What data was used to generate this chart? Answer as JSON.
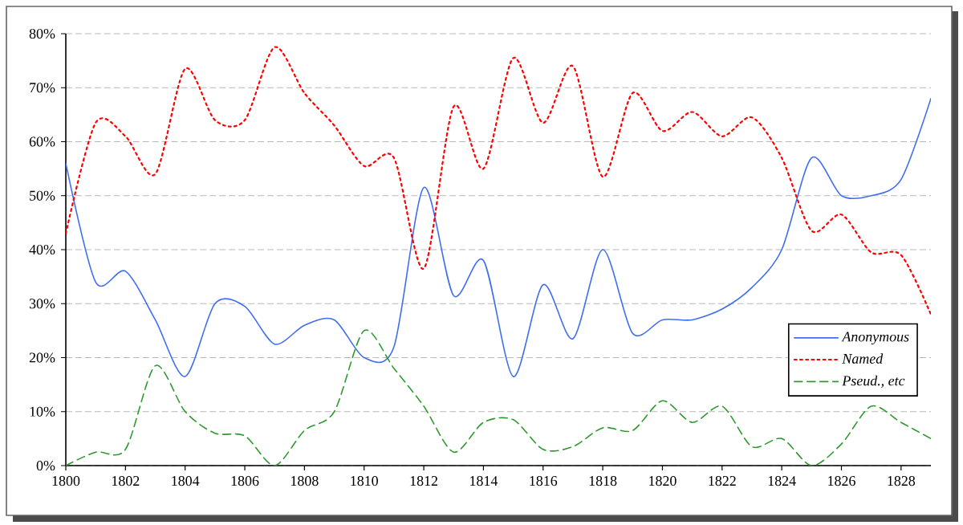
{
  "chart_data": {
    "type": "line",
    "x": [
      1800,
      1801,
      1802,
      1803,
      1804,
      1805,
      1806,
      1807,
      1808,
      1809,
      1810,
      1811,
      1812,
      1813,
      1814,
      1815,
      1816,
      1817,
      1818,
      1819,
      1820,
      1821,
      1822,
      1823,
      1824,
      1825,
      1826,
      1827,
      1828,
      1829
    ],
    "series": [
      {
        "name": "Anonymous",
        "color": "#3f6fef",
        "line_style": "solid",
        "values": [
          56,
          34,
          36,
          27,
          16.5,
          30,
          29.5,
          22.5,
          26,
          27,
          20,
          22,
          51.5,
          31.5,
          38,
          16.5,
          33.5,
          23.5,
          40,
          24.5,
          27,
          27,
          29,
          33,
          40,
          57,
          50,
          50,
          53,
          68
        ]
      },
      {
        "name": "Named",
        "color": "#ff0000",
        "line_style": "dotted",
        "values": [
          43,
          63.5,
          61,
          54,
          73.5,
          64,
          64,
          77.5,
          69,
          63,
          55.5,
          57,
          36.5,
          66.5,
          55,
          75.5,
          63.5,
          74,
          53.5,
          69,
          62,
          65.5,
          61,
          64.5,
          57,
          43.5,
          46.5,
          39.5,
          39,
          28
        ]
      },
      {
        "name": "Pseud., etc",
        "color": "#2e9a2e",
        "line_style": "dashed",
        "values": [
          0,
          2.5,
          3,
          18.5,
          10,
          6,
          5.5,
          0,
          6.5,
          10,
          25,
          18,
          11,
          2.5,
          8,
          8.5,
          3,
          3.5,
          7,
          6.5,
          12,
          8,
          11,
          3.5,
          5,
          0,
          4,
          11,
          8,
          5
        ]
      }
    ],
    "xlim": [
      1800,
      1829
    ],
    "xticks": [
      1800,
      1802,
      1804,
      1806,
      1808,
      1810,
      1812,
      1814,
      1816,
      1818,
      1820,
      1822,
      1824,
      1826,
      1828
    ],
    "ylim": [
      0,
      80
    ],
    "yticks": [
      {
        "value": 0,
        "label": "0%"
      },
      {
        "value": 10,
        "label": "10%"
      },
      {
        "value": 20,
        "label": "20%"
      },
      {
        "value": 30,
        "label": "30%"
      },
      {
        "value": 40,
        "label": "40%"
      },
      {
        "value": 50,
        "label": "50%"
      },
      {
        "value": 60,
        "label": "60%"
      },
      {
        "value": 70,
        "label": "70%"
      },
      {
        "value": 80,
        "label": "80%"
      }
    ],
    "grid": "y",
    "legend": "bottom right",
    "marker": "none"
  }
}
